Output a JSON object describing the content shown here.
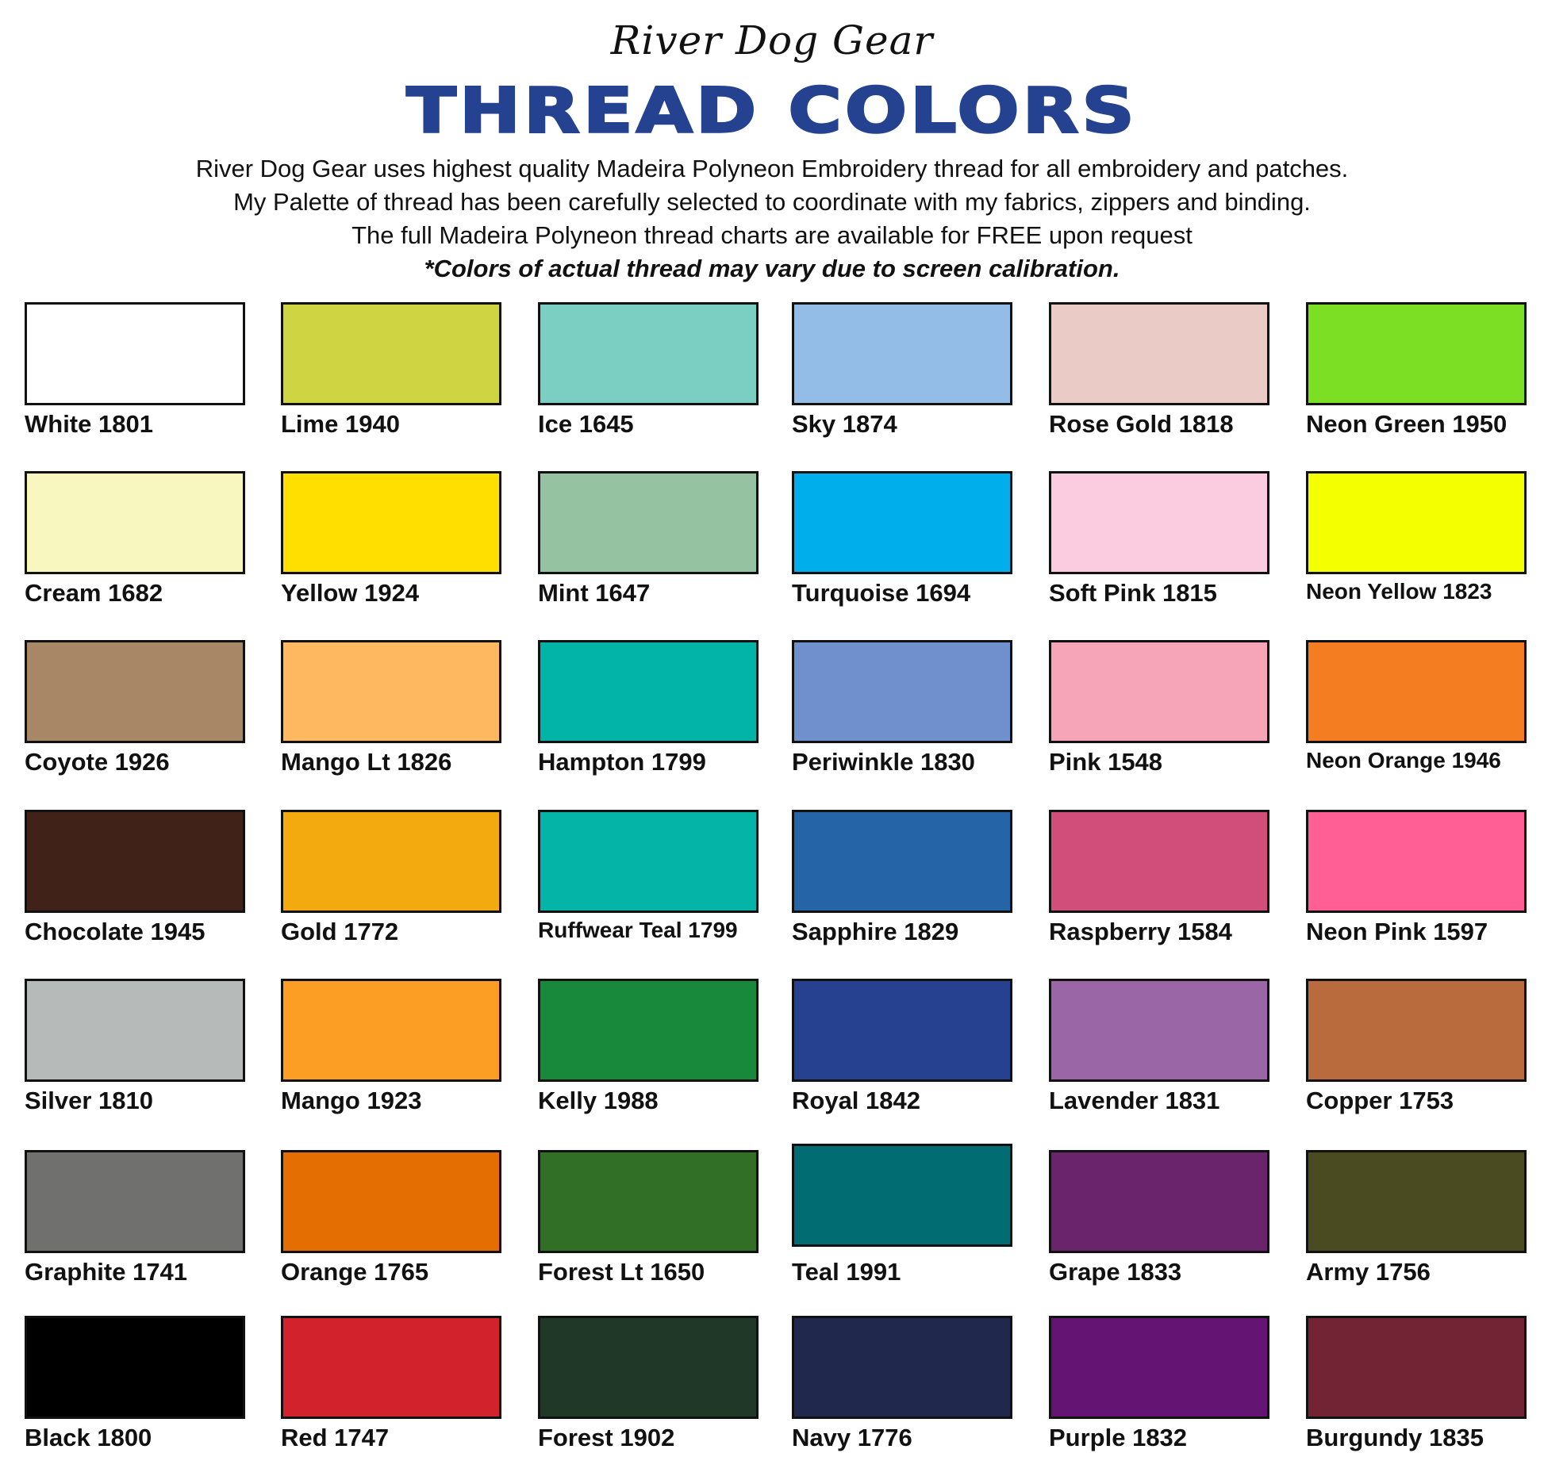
{
  "header": {
    "brand": "River Dog Gear",
    "title": "THREAD COLORS",
    "title_color": "#24428f",
    "lines": [
      "River Dog Gear uses highest quality Madeira Polyneon Embroidery thread for all embroidery and patches.",
      "My Palette of thread has been carefully selected to coordinate with my fabrics, zippers and binding.",
      "The full Madeira Polyneon thread charts are available for FREE upon request"
    ],
    "note": "*Colors of actual thread may vary due to screen calibration."
  },
  "colors": [
    {
      "label": "White 1801",
      "hex": "#ffffff"
    },
    {
      "label": "Lime 1940",
      "hex": "#cfd443"
    },
    {
      "label": "Ice 1645",
      "hex": "#7bcfc2"
    },
    {
      "label": "Sky 1874",
      "hex": "#93bde6"
    },
    {
      "label": "Rose Gold 1818",
      "hex": "#eacbc6"
    },
    {
      "label": "Neon Green 1950",
      "hex": "#7ddf23"
    },
    {
      "label": "Cream 1682",
      "hex": "#f8f7c0"
    },
    {
      "label": "Yellow 1924",
      "hex": "#ffdf00"
    },
    {
      "label": "Mint 1647",
      "hex": "#95c3a2"
    },
    {
      "label": "Turquoise 1694",
      "hex": "#01aeec"
    },
    {
      "label": "Soft Pink 1815",
      "hex": "#fbcbdf"
    },
    {
      "label": "Neon Yellow 1823",
      "hex": "#f4ff00"
    },
    {
      "label": "Coyote 1926",
      "hex": "#a78766"
    },
    {
      "label": "Mango Lt 1826",
      "hex": "#fdb860"
    },
    {
      "label": "Hampton 1799",
      "hex": "#02b4a7"
    },
    {
      "label": "Periwinkle 1830",
      "hex": "#6f8fcd"
    },
    {
      "label": "Pink 1548",
      "hex": "#f6a4b8"
    },
    {
      "label": "Neon Orange 1946",
      "hex": "#f47d22"
    },
    {
      "label": "Chocolate 1945",
      "hex": "#402218"
    },
    {
      "label": "Gold 1772",
      "hex": "#f2aa0f"
    },
    {
      "label": "Ruffwear Teal 1799",
      "hex": "#03b4a7"
    },
    {
      "label": "Sapphire 1829",
      "hex": "#2565a7"
    },
    {
      "label": "Raspberry 1584",
      "hex": "#d14e7b"
    },
    {
      "label": "Neon Pink 1597",
      "hex": "#ff5f95"
    },
    {
      "label": "Silver 1810",
      "hex": "#b6bab8"
    },
    {
      "label": "Mango 1923",
      "hex": "#fd9e24"
    },
    {
      "label": "Kelly 1988",
      "hex": "#18893b"
    },
    {
      "label": "Royal 1842",
      "hex": "#25418f"
    },
    {
      "label": "Lavender 1831",
      "hex": "#9a66a5"
    },
    {
      "label": "Copper 1753",
      "hex": "#b96b3d"
    },
    {
      "label": "Graphite 1741",
      "hex": "#70716e"
    },
    {
      "label": "Orange 1765",
      "hex": "#e56e02"
    },
    {
      "label": "Forest Lt 1650",
      "hex": "#316f26"
    },
    {
      "label": "Teal 1991",
      "hex": "#016d73"
    },
    {
      "label": "Grape 1833",
      "hex": "#6a246c"
    },
    {
      "label": "Army 1756",
      "hex": "#4a4b21"
    },
    {
      "label": "Black 1800",
      "hex": "#000000"
    },
    {
      "label": "Red 1747",
      "hex": "#d2232d"
    },
    {
      "label": "Forest 1902",
      "hex": "#1f3828"
    },
    {
      "label": "Navy 1776",
      "hex": "#20284e"
    },
    {
      "label": "Purple 1832",
      "hex": "#641574"
    },
    {
      "label": "Burgundy 1835",
      "hex": "#722334"
    }
  ]
}
